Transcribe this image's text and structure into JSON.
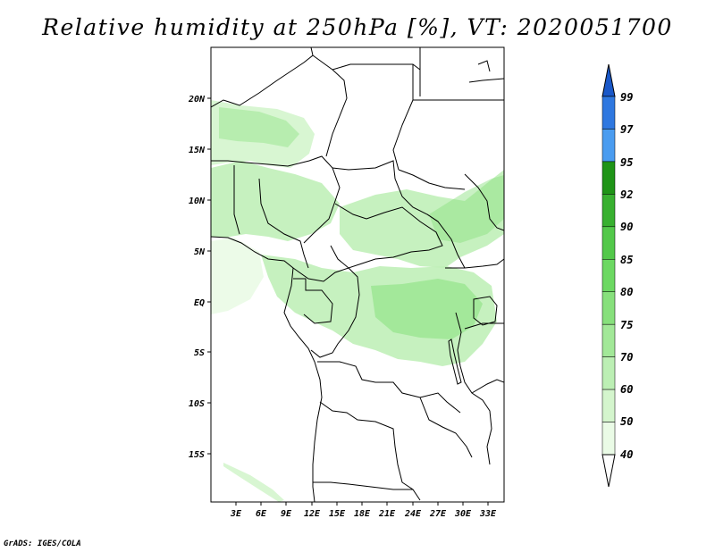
{
  "title": "Relative humidity at 250hPa [%], VT: 2020051700",
  "credit": "GrADS: IGES/COLA",
  "map": {
    "lat_ticks": [
      "20N",
      "15N",
      "10N",
      "5N",
      "EQ",
      "5S",
      "10S",
      "15S"
    ],
    "lon_ticks": [
      "3E",
      "6E",
      "9E",
      "12E",
      "15E",
      "18E",
      "21E",
      "24E",
      "27E",
      "30E",
      "33E"
    ]
  },
  "colorbar": {
    "levels": [
      "40",
      "50",
      "60",
      "70",
      "75",
      "80",
      "85",
      "90",
      "92",
      "95",
      "97",
      "99"
    ],
    "colors": [
      "#ffffff",
      "#eafbe6",
      "#d4f5cd",
      "#bcefb4",
      "#a2e898",
      "#87e07c",
      "#6cd862",
      "#53c84a",
      "#38b030",
      "#1f9417",
      "#4a9cf0",
      "#2f78e0",
      "#1a58c8",
      "#0c3fa8"
    ]
  }
}
